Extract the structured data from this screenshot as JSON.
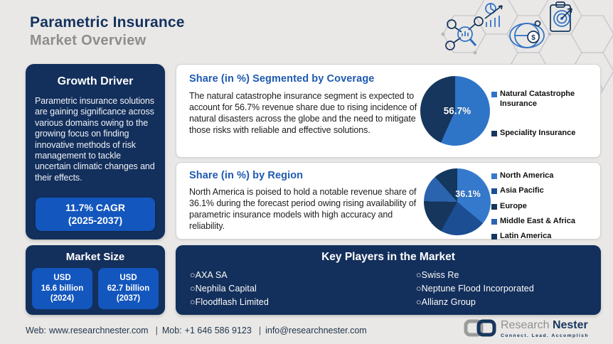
{
  "header": {
    "title_line1": "Parametric Insurance",
    "title_line2": "Market Overview"
  },
  "growth_driver": {
    "title": "Growth Driver",
    "body": "Parametric insurance solutions are gaining significance across various domains owing to the growing focus on finding innovative methods of risk management to tackle uncertain climatic changes and their effects.",
    "cagr_line1": "11.7% CAGR",
    "cagr_line2": "(2025-2037)"
  },
  "market_size": {
    "title": "Market Size",
    "boxes": [
      {
        "line1": "USD",
        "line2": "16.6 billion",
        "line3": "(2024)"
      },
      {
        "line1": "USD",
        "line2": "62.7 billion",
        "line3": "(2037)"
      }
    ]
  },
  "coverage_section": {
    "title": "Share (in %) Segmented by Coverage",
    "body": "The natural catastrophe insurance segment is expected to account for 56.7% revenue share due to rising incidence of natural disasters across the globe and the need to mitigate those risks with reliable and effective solutions."
  },
  "region_section": {
    "title": "Share (in %) by Region",
    "body": "North America is poised to hold a notable revenue share of 36.1% during the forecast period owing rising availability of parametric insurance models with high accuracy and reliability."
  },
  "key_players": {
    "title": "Key Players in the Market",
    "bullet": "○",
    "column1": [
      "AXA SA",
      "Nephila Capital",
      "Floodflash Limited"
    ],
    "column2": [
      "Swiss Re",
      "Neptune Flood Incorporated",
      "Allianz Group"
    ]
  },
  "footer": {
    "web_label": "Web:",
    "web": "www.researchnester.com",
    "sep1": "|",
    "mob_label": "Mob:",
    "mob": "+1 646 586 9123",
    "sep2": "|",
    "email": "info@researchnester.com"
  },
  "logo": {
    "name_part1": "Research",
    "name_part2": "Nester",
    "tagline": "Connect. Lead. Accomplish"
  },
  "icons": [
    "network-search-icon",
    "growth-chart-icon",
    "globe-money-icon",
    "target-clipboard-icon"
  ],
  "colors": {
    "background": "#e9e8e6",
    "navy_card": "#132f5b",
    "bright_blue": "#1356bd",
    "heading_blue": "#1e5ab0",
    "title_navy": "#14325f",
    "title_gray": "#8d8d8d"
  },
  "chart_data": [
    {
      "type": "pie",
      "title": "Share (in %) Segmented by Coverage",
      "labels": [
        "Natural Catastrophe Insurance",
        "Speciality Insurance"
      ],
      "values": [
        56.7,
        43.3
      ],
      "colors": [
        "#2e75c8",
        "#17365d"
      ],
      "data_label": "56.7%",
      "legend_position": "right"
    },
    {
      "type": "pie",
      "title": "Share (in %) by Region",
      "labels": [
        "North America",
        "Asia Pacific",
        "Europe",
        "Middle East & Africa",
        "Latin America"
      ],
      "values": [
        36.1,
        22.0,
        17.2,
        13.1,
        11.6
      ],
      "colors": [
        "#3579cc",
        "#1b4e93",
        "#17365d",
        "#2b64ae",
        "#14375e"
      ],
      "data_label": "36.1%",
      "legend_position": "right"
    }
  ]
}
